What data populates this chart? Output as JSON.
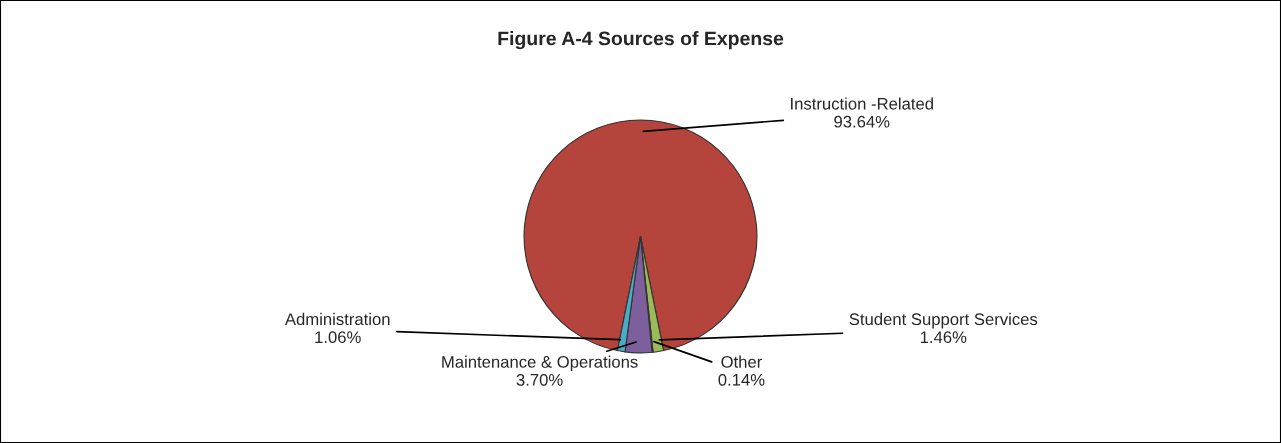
{
  "chart_data": {
    "type": "pie",
    "title": "Figure A-4 Sources of Expense",
    "categories": [
      "Instruction -Related",
      "Student Support Services",
      "Other",
      "Maintenance & Operations",
      "Administration"
    ],
    "values": [
      93.64,
      1.46,
      0.14,
      3.7,
      1.06
    ],
    "value_labels": [
      "93.64%",
      "1.46%",
      "0.14%",
      "3.70%",
      "1.06%"
    ],
    "colors": [
      "#b5443d",
      "#9bbb59",
      "#8c8c8c",
      "#7d5f9e",
      "#4bacc6"
    ]
  }
}
